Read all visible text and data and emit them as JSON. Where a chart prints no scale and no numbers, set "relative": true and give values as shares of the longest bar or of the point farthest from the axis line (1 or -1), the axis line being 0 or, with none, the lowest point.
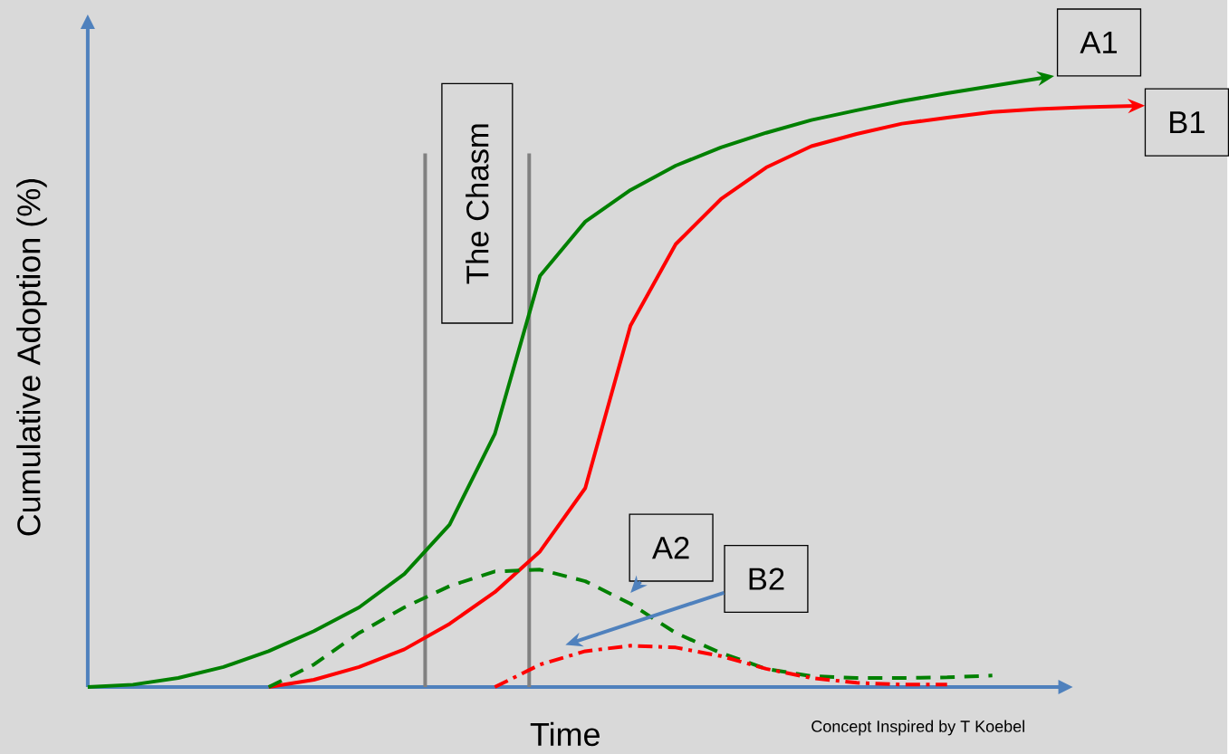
{
  "chart_data": {
    "type": "line",
    "relative": true,
    "xlabel": "Time",
    "ylabel": "Cumulative Adoption (%)",
    "categories": [
      null,
      null,
      null,
      null,
      null,
      null,
      null,
      null,
      null,
      null,
      null,
      null,
      null,
      null,
      null,
      null,
      null,
      null,
      null,
      null,
      null,
      null,
      null,
      null
    ],
    "series": [
      {
        "name": "A1",
        "color": "#008000",
        "line_style": "solid",
        "values": [
          0,
          0.004,
          0.015,
          0.033,
          0.059,
          0.092,
          0.131,
          0.186,
          0.267,
          0.416,
          0.676,
          0.765,
          0.817,
          0.857,
          0.887,
          0.911,
          0.932,
          0.948,
          0.963,
          0.976,
          0.988,
          1.0,
          null,
          null
        ]
      },
      {
        "name": "B1",
        "color": "#ff0000",
        "line_style": "solid",
        "values": [
          null,
          null,
          null,
          null,
          0,
          0.012,
          0.033,
          0.062,
          0.104,
          0.156,
          0.223,
          0.327,
          0.594,
          0.728,
          0.802,
          0.854,
          0.889,
          0.909,
          0.926,
          0.936,
          0.945,
          0.95,
          0.953,
          0.955
        ]
      },
      {
        "name": "A2",
        "color": "#008000",
        "line_style": "dashed",
        "values": [
          null,
          null,
          null,
          null,
          0,
          0.037,
          0.089,
          0.131,
          0.166,
          0.19,
          0.193,
          0.174,
          0.137,
          0.089,
          0.056,
          0.03,
          0.018,
          0.015,
          0.015,
          0.016,
          0.019,
          null,
          null,
          null
        ]
      },
      {
        "name": "B2",
        "color": "#ff0000",
        "line_style": "dashdot",
        "values": [
          null,
          null,
          null,
          null,
          null,
          null,
          null,
          null,
          null,
          0,
          0.037,
          0.059,
          0.068,
          0.065,
          0.051,
          0.03,
          0.015,
          0.007,
          0.004,
          0.004,
          null,
          null,
          null,
          null
        ]
      }
    ],
    "annotations": [
      "The Chasm",
      "Concept Inspired by T Koebel"
    ]
  }
}
